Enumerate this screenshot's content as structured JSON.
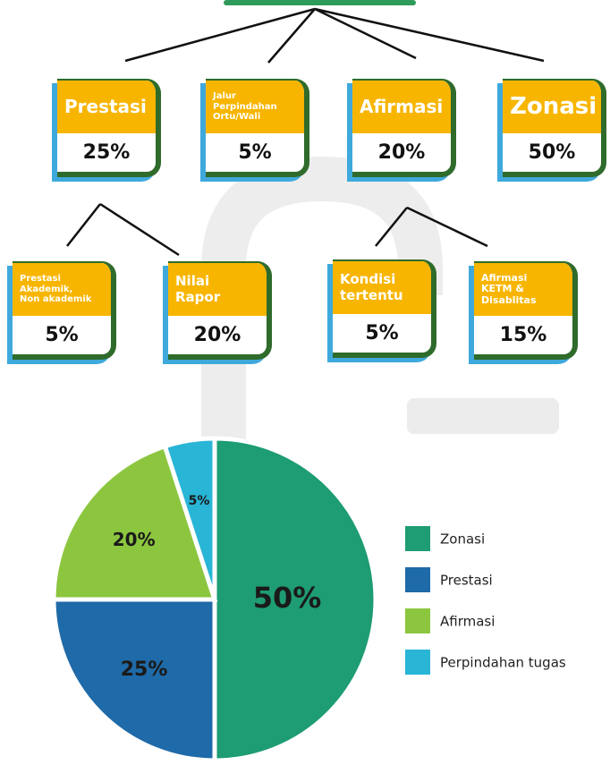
{
  "nodes": [
    {
      "label": "Prestasi",
      "share": "25%",
      "children": [
        {
          "label": "Prestasi\nAkademik,\nNon akademik",
          "share": "5%"
        },
        {
          "label": "Nilai\nRapor",
          "share": "20%"
        }
      ]
    },
    {
      "label": "Jalur\nPerpindahan\nOrtu/Wali",
      "share": "5%"
    },
    {
      "label": "Afirmasi",
      "share": "20%",
      "children": [
        {
          "label": "Kondisi\ntertentu",
          "share": "5%"
        },
        {
          "label": "Afirmasi\nKETM &\nDisablitas",
          "share": "15%"
        }
      ]
    },
    {
      "label": "Zonasi",
      "share": "50%"
    }
  ],
  "chart_data": {
    "type": "pie",
    "categories": [
      "Zonasi",
      "Prestasi",
      "Afirmasi",
      "Perpindahan tugas"
    ],
    "values": [
      50,
      25,
      20,
      5
    ],
    "value_labels": [
      "50%",
      "25%",
      "20%",
      "5%"
    ],
    "colors": [
      "#1e9c74",
      "#1f6aa8",
      "#8cc63f",
      "#29b5d6"
    ]
  }
}
